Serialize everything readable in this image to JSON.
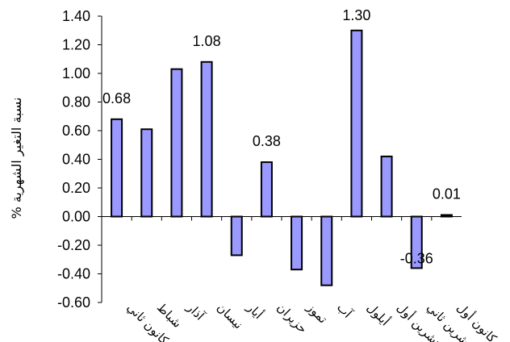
{
  "chart_data": {
    "type": "bar",
    "title": "",
    "xlabel": "",
    "ylabel": "% نسبة التغير الشهرية",
    "ylim": [
      -0.6,
      1.4
    ],
    "yticks": [
      "1.40",
      "1.20",
      "1.00",
      "0.80",
      "0.60",
      "0.40",
      "0.20",
      "0.00",
      "-0.20",
      "-0.40",
      "-0.60"
    ],
    "ytick_values": [
      1.4,
      1.2,
      1.0,
      0.8,
      0.6,
      0.4,
      0.2,
      0.0,
      -0.2,
      -0.4,
      -0.6
    ],
    "grid": false,
    "legend": "none",
    "bar_color": "#9999ff",
    "categories": [
      "كانون ثاني",
      "شباط",
      "آذار",
      "نيسان",
      "أيار",
      "حزيران",
      "تموز",
      "آب",
      "أيلول",
      "تشرين أول",
      "تشرين ثاني",
      "كانون أول"
    ],
    "values": [
      0.68,
      0.61,
      1.03,
      1.08,
      -0.27,
      0.38,
      -0.37,
      -0.48,
      1.3,
      0.42,
      -0.36,
      0.01
    ],
    "data_labels": [
      {
        "index": 0,
        "text": "0.68"
      },
      {
        "index": 3,
        "text": "1.08"
      },
      {
        "index": 5,
        "text": "0.38"
      },
      {
        "index": 8,
        "text": "1.30"
      },
      {
        "index": 10,
        "text": "-0.36"
      },
      {
        "index": 11,
        "text": "0.01"
      }
    ]
  }
}
